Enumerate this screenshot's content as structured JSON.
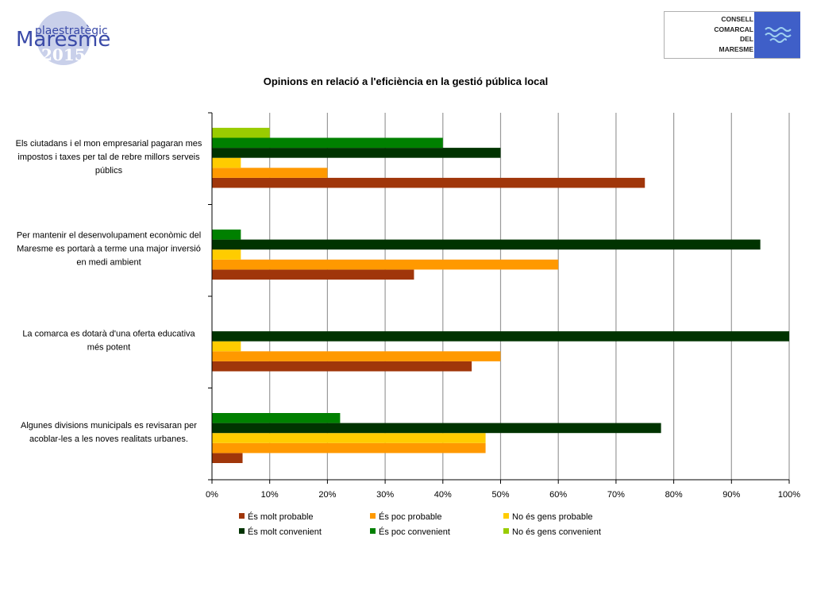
{
  "header": {
    "logo_left": {
      "top_text": "plaestratègic",
      "main_text": "Maresme",
      "year_text": "2015"
    },
    "logo_right": {
      "lines": [
        "CONSELL",
        "COMARCAL",
        "DEL",
        "MARESME"
      ]
    }
  },
  "colors": {
    "emblem": "#3f5fc8",
    "molt_probable": "#a0360a",
    "poc_probable": "#ff9900",
    "no_gens_probable": "#ffcc00",
    "molt_convenient": "#003300",
    "poc_convenient": "#008000",
    "no_gens_convenient": "#99cc00"
  },
  "chart_data": {
    "type": "bar",
    "orientation": "horizontal",
    "title": "Opinions en relació a l'eficiència en la gestió pública local",
    "categories": [
      [
        "Els ciutadans i el mon empresarial pagaran mes",
        "impostos i taxes per tal de rebre millors serveis",
        "públics"
      ],
      [
        "Per mantenir el desenvolupament econòmic del",
        "Maresme es portarà a terme una major inversió",
        "en medi ambient"
      ],
      [
        "La comarca es dotarà d'una oferta educativa",
        "més potent"
      ],
      [
        "Algunes divisions municipals es revisaran per",
        "acoblar-les a les noves realitats urbanes."
      ]
    ],
    "series": [
      {
        "name": "És molt probable",
        "color": "#a0360a",
        "values": [
          75,
          35,
          45,
          5.3
        ]
      },
      {
        "name": "És poc probable",
        "color": "#ff9900",
        "values": [
          20,
          60,
          50,
          47.4
        ]
      },
      {
        "name": "No és gens probable",
        "color": "#ffcc00",
        "values": [
          5,
          5,
          5,
          47.4
        ]
      },
      {
        "name": "És molt convenient",
        "color": "#003300",
        "values": [
          50,
          95,
          100,
          77.8
        ]
      },
      {
        "name": "És poc convenient",
        "color": "#008000",
        "values": [
          40,
          5,
          0,
          22.2
        ]
      },
      {
        "name": "No és gens convenient",
        "color": "#99cc00",
        "values": [
          10,
          0,
          0,
          0
        ]
      }
    ],
    "xlim": [
      0,
      100
    ],
    "xticks": [
      "0%",
      "10%",
      "20%",
      "30%",
      "40%",
      "50%",
      "60%",
      "70%",
      "80%",
      "90%",
      "100%"
    ],
    "grid": true,
    "legend_position": "bottom"
  }
}
